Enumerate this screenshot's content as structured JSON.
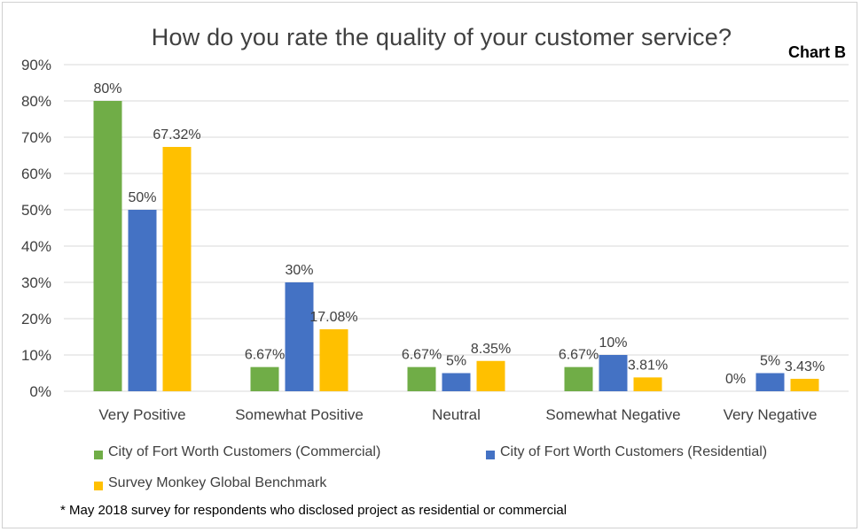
{
  "title": "How do you rate the quality of your customer service?",
  "chart_tag": "Chart B",
  "footnote": "* May 2018 survey for respondents who disclosed project as residential or commercial",
  "colors": {
    "commercial": "#70AD47",
    "residential": "#4472C4",
    "benchmark": "#FFC000",
    "grid": "#d9d9d9",
    "text": "#404040"
  },
  "chart_data": {
    "type": "bar",
    "title": "How do you rate the quality of your customer service?",
    "xlabel": "",
    "ylabel": "",
    "ylim": [
      0,
      90
    ],
    "y_ticks": [
      "0%",
      "10%",
      "20%",
      "30%",
      "40%",
      "50%",
      "60%",
      "70%",
      "80%",
      "90%"
    ],
    "categories": [
      "Very Positive",
      "Somewhat Positive",
      "Neutral",
      "Somewhat Negative",
      "Very Negative"
    ],
    "series": [
      {
        "name": "City of Fort Worth Customers (Commercial)",
        "values": [
          80,
          6.67,
          6.67,
          6.67,
          0
        ],
        "labels": [
          "80%",
          "6.67%",
          "6.67%",
          "6.67%",
          "0%"
        ]
      },
      {
        "name": "City of Fort Worth Customers (Residential)",
        "values": [
          50,
          30,
          5,
          10,
          5
        ],
        "labels": [
          "50%",
          "30%",
          "5%",
          "10%",
          "5%"
        ]
      },
      {
        "name": "Survey Monkey Global Benchmark",
        "values": [
          67.32,
          17.08,
          8.35,
          3.81,
          3.43
        ],
        "labels": [
          "67.32%",
          "17.08%",
          "8.35%",
          "3.81%",
          "3.43%"
        ]
      }
    ],
    "grid": true,
    "legend_position": "bottom-left"
  }
}
